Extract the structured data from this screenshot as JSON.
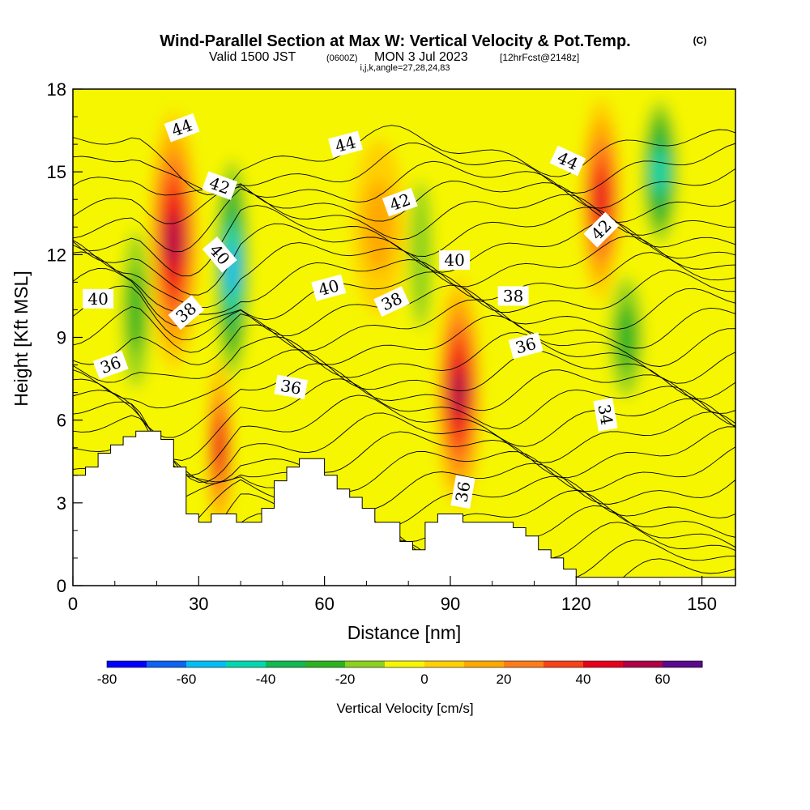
{
  "title": "Wind-Parallel Section at Max W: Vertical Velocity & Pot.Temp.",
  "title_mark": "(C)",
  "subtitle_valid": "Valid 1500 JST",
  "subtitle_utc": "(0600Z)",
  "subtitle_date": "MON 3 Jul 2023",
  "subtitle_fcst": "[12hrFcst@2148z]",
  "subtitle_ijk": "i,j,k,angle=27,28,24,83",
  "chart_data": {
    "type": "heatmap",
    "xlabel": "Distance [nm]",
    "ylabel": "Height [Kft MSL]",
    "xlim": [
      0,
      158
    ],
    "ylim": [
      0,
      18
    ],
    "xticks": [
      0,
      30,
      60,
      90,
      120,
      150
    ],
    "yticks": [
      0,
      3,
      6,
      9,
      12,
      15,
      18
    ],
    "colorbar": {
      "label": "Vertical Velocity [cm/s]",
      "ticks": [
        -80,
        -60,
        -40,
        -20,
        0,
        20,
        40,
        60
      ],
      "colors": [
        "#0000ff",
        "#0d63f2",
        "#00bef5",
        "#00d8b0",
        "#12b850",
        "#2db320",
        "#8bd11d",
        "#f6f600",
        "#ffd000",
        "#ffa800",
        "#ff7c1a",
        "#f84218",
        "#e8001a",
        "#b00048",
        "#5a0a8e"
      ]
    },
    "velocity_cells": [
      {
        "x": 24,
        "y": 12.5,
        "w": -0.0,
        "rx": 4.5,
        "ry": 4.5,
        "v": 60
      },
      {
        "x": 38,
        "y": 11.5,
        "w": 0,
        "rx": 3,
        "ry": 4.5,
        "v": -60
      },
      {
        "x": 35,
        "y": 5,
        "rx": 1.5,
        "ry": 3,
        "v": 50
      },
      {
        "x": 92,
        "y": 7,
        "rx": 4,
        "ry": 4,
        "v": 60
      },
      {
        "x": 126,
        "y": 14,
        "rx": 3.5,
        "ry": 3.5,
        "v": 45
      },
      {
        "x": 140,
        "y": 15,
        "rx": 3.5,
        "ry": 3,
        "v": -45
      },
      {
        "x": 83,
        "y": 12,
        "rx": 3,
        "ry": 5,
        "v": -20
      },
      {
        "x": 73,
        "y": 13,
        "rx": 5,
        "ry": 3,
        "v": 20
      },
      {
        "x": 15,
        "y": 10,
        "rx": 3,
        "ry": 4,
        "v": -25
      },
      {
        "x": 132,
        "y": 9,
        "rx": 4,
        "ry": 3,
        "v": -25
      }
    ],
    "theta_contours": [
      {
        "value": 34,
        "label_at": [
          127,
          6.2
        ],
        "angle": 80
      },
      {
        "value": 36,
        "label_at": [
          9,
          8.0
        ],
        "angle": -20
      },
      {
        "value": 36,
        "label_at": [
          52,
          7.2
        ],
        "angle": 10
      },
      {
        "value": 36,
        "label_at": [
          108,
          8.7
        ],
        "angle": -15
      },
      {
        "value": 36,
        "label_at": [
          93,
          3.4
        ],
        "angle": -80
      },
      {
        "value": 38,
        "label_at": [
          27,
          9.9
        ],
        "angle": -40
      },
      {
        "value": 38,
        "label_at": [
          76,
          10.3
        ],
        "angle": -25
      },
      {
        "value": 38,
        "label_at": [
          105,
          10.5
        ],
        "angle": 0
      },
      {
        "value": 40,
        "label_at": [
          6,
          10.4
        ],
        "angle": 0
      },
      {
        "value": 40,
        "label_at": [
          35,
          12.0
        ],
        "angle": 50
      },
      {
        "value": 40,
        "label_at": [
          61,
          10.8
        ],
        "angle": -15
      },
      {
        "value": 40,
        "label_at": [
          91,
          11.8
        ],
        "angle": 0
      },
      {
        "value": 42,
        "label_at": [
          35,
          14.5
        ],
        "angle": 20
      },
      {
        "value": 42,
        "label_at": [
          78,
          13.9
        ],
        "angle": -20
      },
      {
        "value": 42,
        "label_at": [
          126,
          12.9
        ],
        "angle": -45
      },
      {
        "value": 44,
        "label_at": [
          26,
          16.6
        ],
        "angle": -20
      },
      {
        "value": 44,
        "label_at": [
          65,
          16.0
        ],
        "angle": -15
      },
      {
        "value": 44,
        "label_at": [
          118,
          15.4
        ],
        "angle": 25
      }
    ],
    "terrain": [
      [
        0,
        4
      ],
      [
        3,
        4
      ],
      [
        3,
        4.3
      ],
      [
        6,
        4.3
      ],
      [
        6,
        4.8
      ],
      [
        9,
        4.8
      ],
      [
        9,
        5.1
      ],
      [
        12,
        5.1
      ],
      [
        12,
        5.4
      ],
      [
        15,
        5.4
      ],
      [
        15,
        5.6
      ],
      [
        21,
        5.6
      ],
      [
        21,
        5.3
      ],
      [
        24,
        5.3
      ],
      [
        24,
        4.3
      ],
      [
        27,
        4.3
      ],
      [
        27,
        2.6
      ],
      [
        30,
        2.6
      ],
      [
        30,
        2.3
      ],
      [
        33,
        2.3
      ],
      [
        33,
        2.6
      ],
      [
        39,
        2.6
      ],
      [
        39,
        2.3
      ],
      [
        45,
        2.3
      ],
      [
        45,
        2.8
      ],
      [
        48,
        2.8
      ],
      [
        48,
        3.8
      ],
      [
        51,
        3.8
      ],
      [
        51,
        4.3
      ],
      [
        54,
        4.3
      ],
      [
        54,
        4.6
      ],
      [
        60,
        4.6
      ],
      [
        60,
        4.0
      ],
      [
        63,
        4.0
      ],
      [
        63,
        3.5
      ],
      [
        66,
        3.5
      ],
      [
        66,
        3.2
      ],
      [
        69,
        3.2
      ],
      [
        69,
        2.8
      ],
      [
        72,
        2.8
      ],
      [
        72,
        2.3
      ],
      [
        78,
        2.3
      ],
      [
        78,
        1.6
      ],
      [
        81,
        1.6
      ],
      [
        81,
        1.3
      ],
      [
        84,
        1.3
      ],
      [
        84,
        2.3
      ],
      [
        87,
        2.3
      ],
      [
        87,
        2.6
      ],
      [
        93,
        2.6
      ],
      [
        93,
        2.3
      ],
      [
        105,
        2.3
      ],
      [
        105,
        2.1
      ],
      [
        108,
        2.1
      ],
      [
        108,
        1.8
      ],
      [
        111,
        1.8
      ],
      [
        111,
        1.3
      ],
      [
        114,
        1.3
      ],
      [
        114,
        1.0
      ],
      [
        117,
        1.0
      ],
      [
        117,
        0.6
      ],
      [
        120,
        0.6
      ],
      [
        120,
        0.3
      ],
      [
        158,
        0.3
      ]
    ]
  }
}
